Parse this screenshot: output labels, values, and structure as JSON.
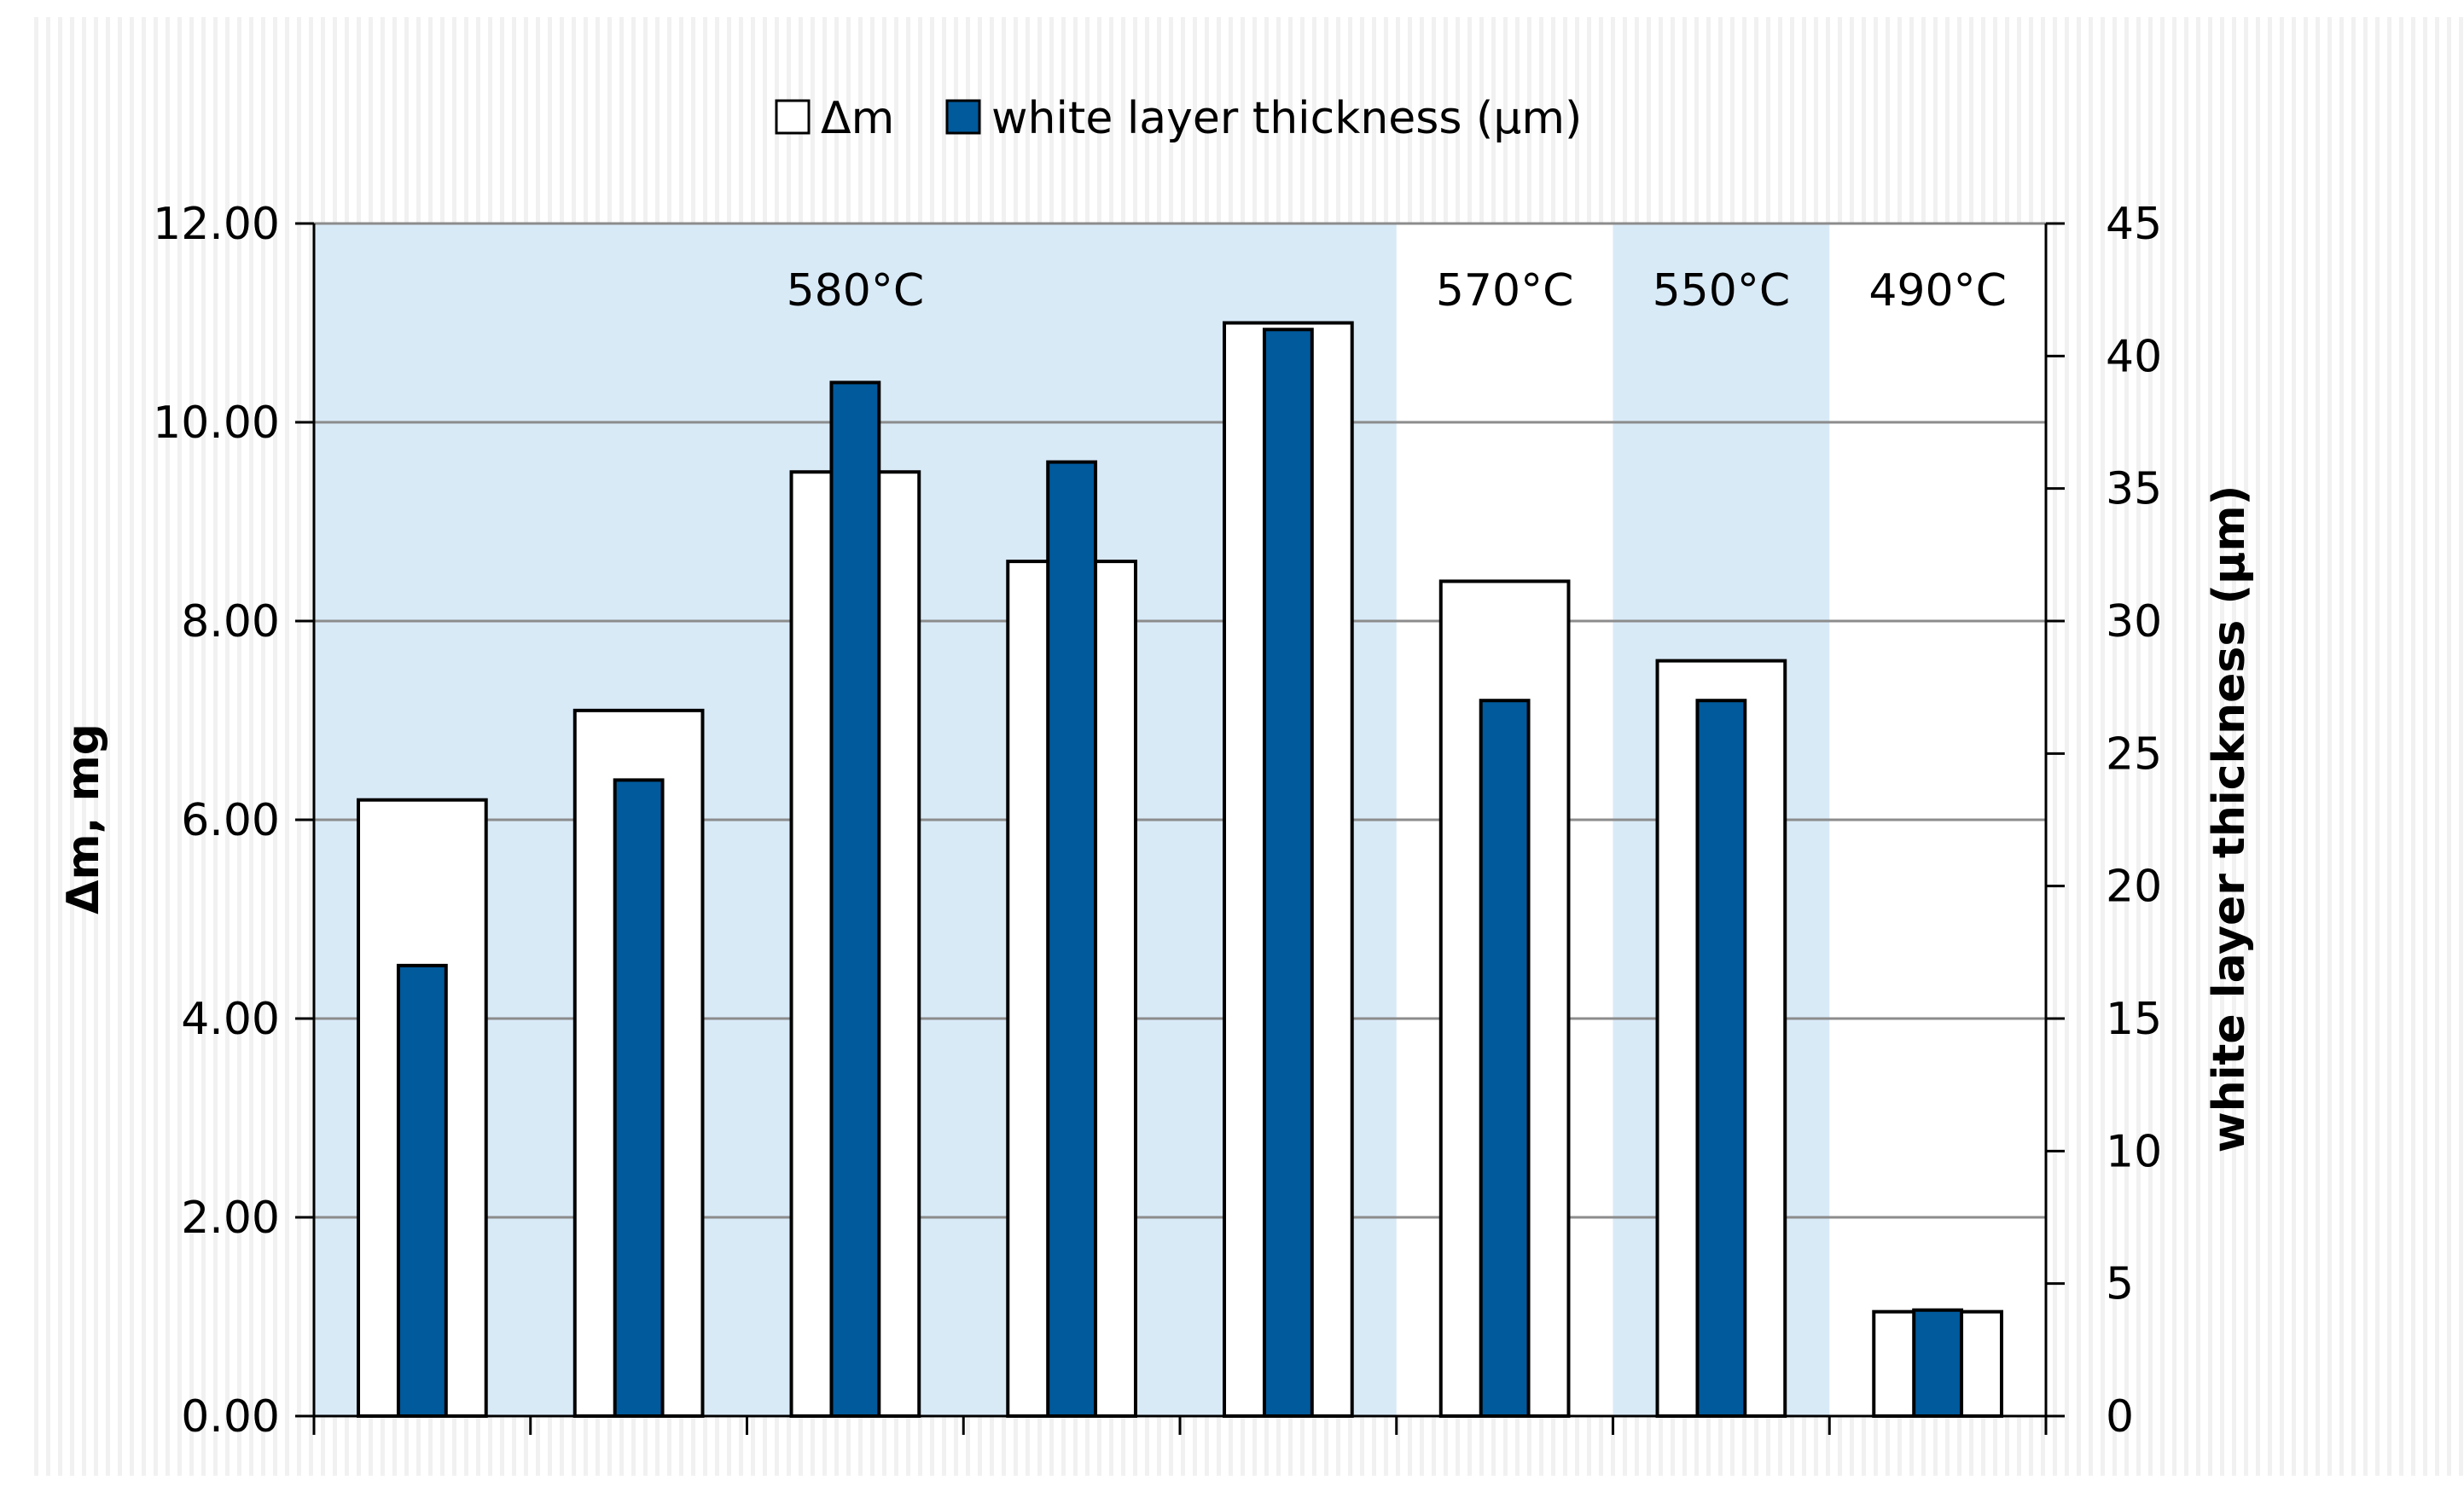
{
  "chart_data": {
    "type": "bar",
    "title": "",
    "categories": [
      "",
      "",
      "",
      "",
      "",
      "",
      "",
      ""
    ],
    "series": [
      {
        "name": "Δm",
        "axis": "left",
        "color": "#ffffff",
        "values": [
          6.2,
          7.1,
          9.5,
          8.6,
          11.0,
          8.4,
          7.6,
          1.05
        ]
      },
      {
        "name": "white layer thickness (µm)",
        "axis": "right",
        "color": "#005a9c",
        "values": [
          17,
          24,
          39,
          36,
          41,
          27,
          27,
          4
        ]
      }
    ],
    "ylabel": "Δm, mg",
    "y2label": "white layer thickness (µm)",
    "ylim": [
      0,
      12
    ],
    "y2lim": [
      0,
      45
    ],
    "yticks": [
      "0.00",
      "2.00",
      "4.00",
      "6.00",
      "8.00",
      "10.00",
      "12.00"
    ],
    "y2ticks": [
      "0",
      "5",
      "10",
      "15",
      "20",
      "25",
      "30",
      "35",
      "40",
      "45"
    ],
    "legend": {
      "position": "top-center",
      "entries": [
        "Δm",
        "white layer thickness (µm)"
      ]
    },
    "grid": true,
    "temperature_bands": [
      {
        "label": "580°C",
        "categories": [
          0,
          1,
          2,
          3,
          4
        ],
        "shaded": true
      },
      {
        "label": "570°C",
        "categories": [
          5
        ],
        "shaded": false
      },
      {
        "label": "550°C",
        "categories": [
          6
        ],
        "shaded": true
      },
      {
        "label": "490°C",
        "categories": [
          7
        ],
        "shaded": false
      }
    ],
    "band_color": "#d9eaf7"
  }
}
